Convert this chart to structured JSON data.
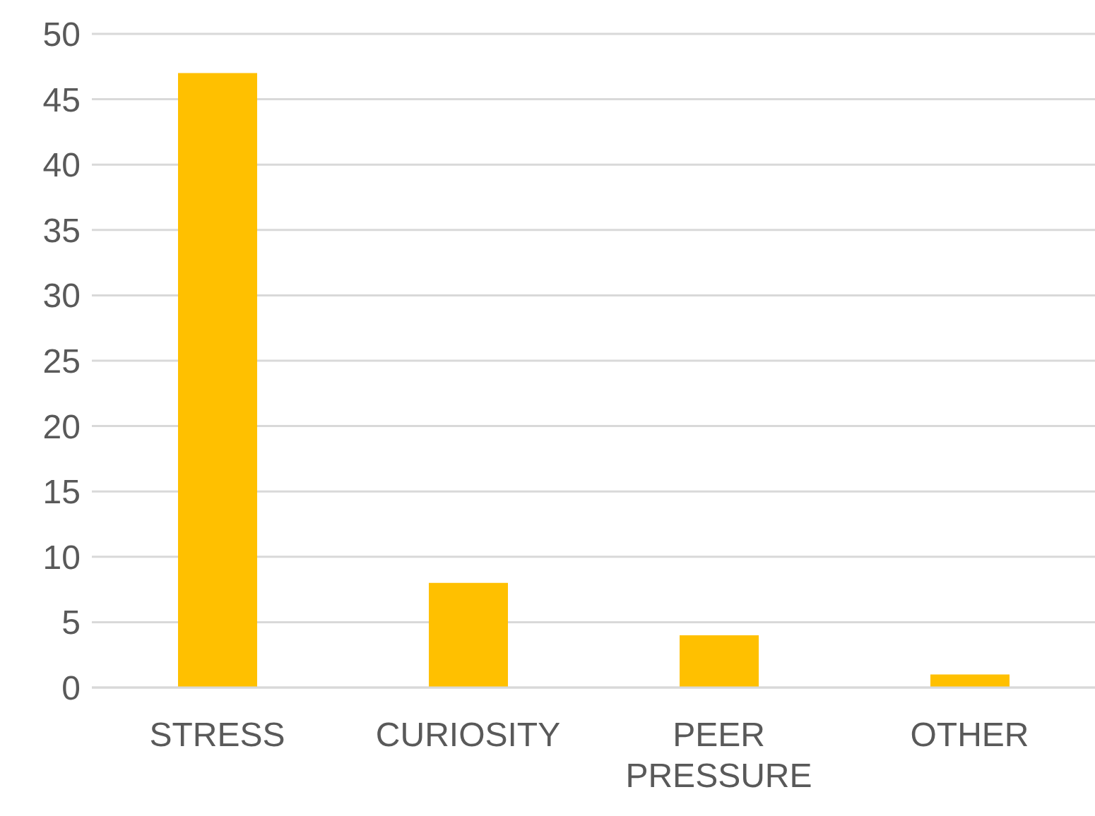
{
  "chart_data": {
    "type": "bar",
    "categories": [
      "STRESS",
      "CURIOSITY",
      "PEER PRESSURE",
      "OTHER"
    ],
    "values": [
      47,
      8,
      4,
      1
    ],
    "color": "#ffc000",
    "ylim": [
      0,
      50
    ],
    "yticks": [
      0,
      5,
      10,
      15,
      20,
      25,
      30,
      35,
      40,
      45,
      50
    ],
    "grid": "y"
  }
}
